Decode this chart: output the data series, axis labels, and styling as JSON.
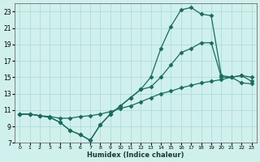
{
  "xlabel": "Humidex (Indice chaleur)",
  "bg_color": "#cff0ec",
  "grid_color": "#aad8d3",
  "line_color": "#1a6b5a",
  "marker": "D",
  "markersize": 2.5,
  "linewidth": 0.9,
  "xlim": [
    -0.5,
    23.5
  ],
  "ylim": [
    7,
    24
  ],
  "xticks": [
    0,
    1,
    2,
    3,
    4,
    5,
    6,
    7,
    8,
    9,
    10,
    11,
    12,
    13,
    14,
    15,
    16,
    17,
    18,
    19,
    20,
    21,
    22,
    23
  ],
  "yticks": [
    7,
    9,
    11,
    13,
    15,
    17,
    19,
    21,
    23
  ],
  "series": [
    {
      "x": [
        0,
        1,
        2,
        3,
        4,
        5,
        6,
        7,
        8,
        9,
        10,
        11,
        12,
        13,
        14,
        15,
        16,
        17,
        18,
        19,
        20,
        21,
        22,
        23
      ],
      "y": [
        10.5,
        10.5,
        10.3,
        10.1,
        9.5,
        8.5,
        8.0,
        7.3,
        9.2,
        10.5,
        11.5,
        12.5,
        13.5,
        15.0,
        18.5,
        21.2,
        23.2,
        23.5,
        22.7,
        22.5,
        15.2,
        15.0,
        15.2,
        14.5
      ]
    },
    {
      "x": [
        0,
        1,
        2,
        3,
        4,
        5,
        6,
        7,
        8,
        9,
        10,
        11,
        12,
        13,
        14,
        15,
        16,
        17,
        18,
        19,
        20,
        21,
        22,
        23
      ],
      "y": [
        10.5,
        10.5,
        10.3,
        10.1,
        9.5,
        8.5,
        8.0,
        7.3,
        9.2,
        10.5,
        11.5,
        12.5,
        13.5,
        13.8,
        15.0,
        16.5,
        18.0,
        18.5,
        19.2,
        19.2,
        15.0,
        15.0,
        15.2,
        15.0
      ]
    },
    {
      "x": [
        0,
        1,
        2,
        3,
        4,
        5,
        6,
        7,
        8,
        9,
        10,
        11,
        12,
        13,
        14,
        15,
        16,
        17,
        18,
        19,
        20,
        21,
        22,
        23
      ],
      "y": [
        10.5,
        10.5,
        10.3,
        10.2,
        10.0,
        10.0,
        10.2,
        10.3,
        10.5,
        10.8,
        11.2,
        11.5,
        12.0,
        12.5,
        13.0,
        13.3,
        13.7,
        14.0,
        14.3,
        14.5,
        14.7,
        15.0,
        14.3,
        14.2
      ]
    }
  ]
}
